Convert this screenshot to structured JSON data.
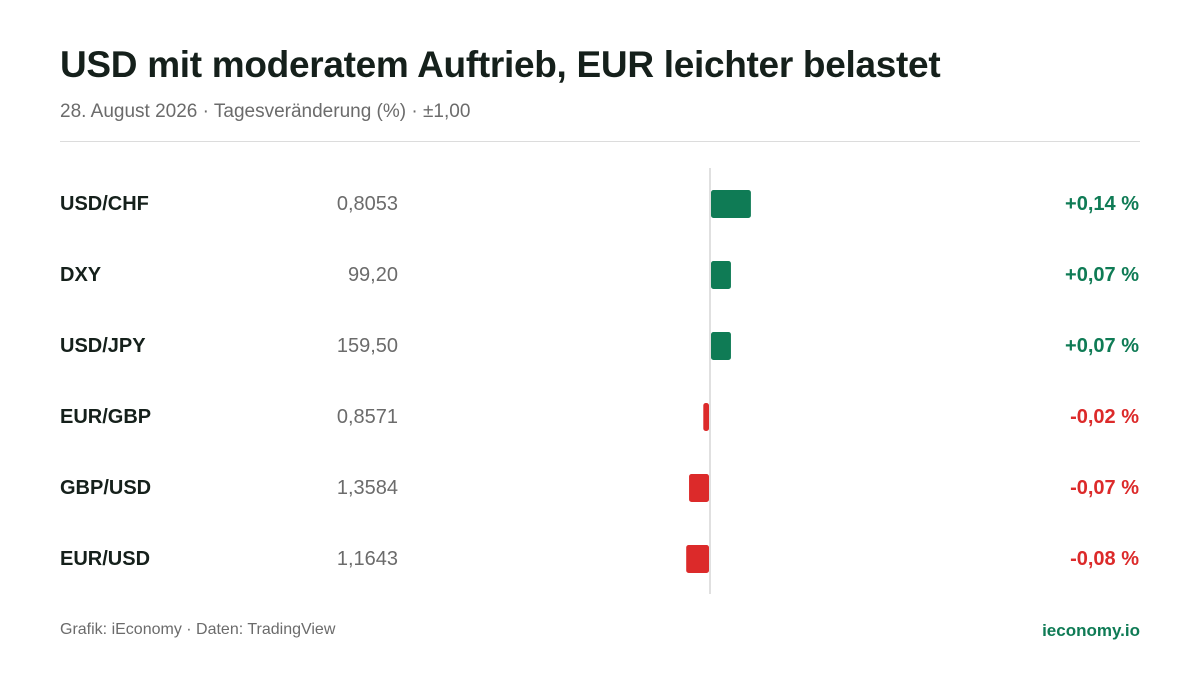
{
  "title": "USD mit moderatem Auftrieb, EUR leichter belastet",
  "subtitle": "28. August 2026 · Tagesveränderung (%) · ±1,00",
  "footer": {
    "source": "Grafik: iEconomy · Daten: TradingView",
    "brand": "ieconomy.io"
  },
  "colors": {
    "positive": "#0f7b55",
    "negative": "#dc2a2a",
    "axis": "#d6d6d6"
  },
  "chart_data": {
    "type": "bar",
    "orientation": "horizontal",
    "categories": [
      "USD/CHF",
      "DXY",
      "USD/JPY",
      "EUR/GBP",
      "GBP/USD",
      "EUR/USD"
    ],
    "prices": [
      "0,8053",
      "99,20",
      "159,50",
      "0,8571",
      "1,3584",
      "1,1643"
    ],
    "values": [
      0.14,
      0.07,
      0.07,
      -0.02,
      -0.07,
      -0.08
    ],
    "value_labels": [
      "+0,14 %",
      "+0,07 %",
      "+0,07 %",
      "-0,02 %",
      "-0,07 %",
      "-0,08 %"
    ],
    "xlim": [
      -1,
      1
    ],
    "grid": false
  }
}
